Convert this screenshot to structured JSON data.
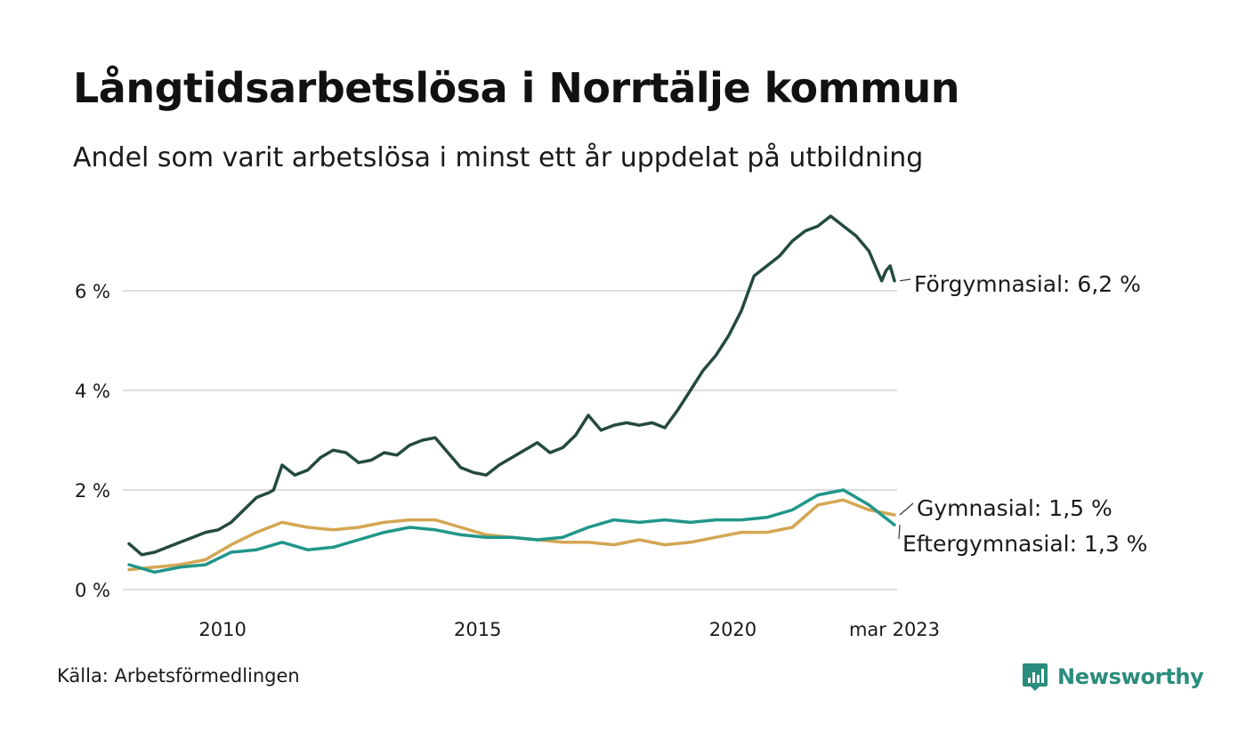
{
  "header": {
    "title": "Långtidsarbetslösa i Norrtälje kommun",
    "subtitle": "Andel som varit arbetslösa i minst ett år uppdelat på utbildning"
  },
  "footer": {
    "source": "Källa: Arbetsförmedlingen",
    "brand": "Newsworthy"
  },
  "colors": {
    "forgymnasial": "#244a41",
    "gymnasial": "#d4a653",
    "eftergymnasial": "#21968a",
    "grid": "#dddddd",
    "brand": "#2a8c7c"
  },
  "chart_data": {
    "type": "line",
    "title": "Långtidsarbetslösa i Norrtälje kommun",
    "subtitle": "Andel som varit arbetslösa i minst ett år uppdelat på utbildning",
    "xlabel": "",
    "ylabel": "",
    "x_start": "2008-03",
    "x_end": "2023-03",
    "xlim": [
      "2008-03",
      "2023-03"
    ],
    "ylim": [
      0,
      7.6
    ],
    "y_ticks": [
      0,
      2,
      4,
      6
    ],
    "y_tick_labels": [
      "0 %",
      "2 %",
      "4 %",
      "6 %"
    ],
    "x_ticks": [
      "2010-01",
      "2015-01",
      "2020-01",
      "2023-03"
    ],
    "x_tick_labels": [
      "2010",
      "2015",
      "2020",
      "mar 2023"
    ],
    "grid": true,
    "legend": "direct labels at line ends",
    "series": [
      {
        "name": "Förgymnasial",
        "label": "Förgymnasial: 6,2 %",
        "color": "#244a41",
        "points": [
          [
            "2008-03",
            0.92
          ],
          [
            "2008-06",
            0.7
          ],
          [
            "2008-09",
            0.75
          ],
          [
            "2008-12",
            0.85
          ],
          [
            "2009-03",
            0.95
          ],
          [
            "2009-06",
            1.05
          ],
          [
            "2009-09",
            1.15
          ],
          [
            "2009-12",
            1.2
          ],
          [
            "2010-03",
            1.35
          ],
          [
            "2010-06",
            1.6
          ],
          [
            "2010-09",
            1.85
          ],
          [
            "2010-12",
            1.95
          ],
          [
            "2011-01",
            2.0
          ],
          [
            "2011-03",
            2.5
          ],
          [
            "2011-06",
            2.3
          ],
          [
            "2011-09",
            2.4
          ],
          [
            "2011-12",
            2.65
          ],
          [
            "2012-03",
            2.8
          ],
          [
            "2012-06",
            2.75
          ],
          [
            "2012-09",
            2.55
          ],
          [
            "2012-12",
            2.6
          ],
          [
            "2013-03",
            2.75
          ],
          [
            "2013-06",
            2.7
          ],
          [
            "2013-09",
            2.9
          ],
          [
            "2013-12",
            3.0
          ],
          [
            "2014-03",
            3.05
          ],
          [
            "2014-06",
            2.75
          ],
          [
            "2014-09",
            2.45
          ],
          [
            "2014-12",
            2.35
          ],
          [
            "2015-03",
            2.3
          ],
          [
            "2015-06",
            2.5
          ],
          [
            "2015-09",
            2.65
          ],
          [
            "2015-12",
            2.8
          ],
          [
            "2016-03",
            2.95
          ],
          [
            "2016-06",
            2.75
          ],
          [
            "2016-09",
            2.85
          ],
          [
            "2016-12",
            3.1
          ],
          [
            "2017-03",
            3.5
          ],
          [
            "2017-06",
            3.2
          ],
          [
            "2017-09",
            3.3
          ],
          [
            "2017-12",
            3.35
          ],
          [
            "2018-03",
            3.3
          ],
          [
            "2018-06",
            3.35
          ],
          [
            "2018-09",
            3.25
          ],
          [
            "2018-12",
            3.6
          ],
          [
            "2019-03",
            4.0
          ],
          [
            "2019-06",
            4.4
          ],
          [
            "2019-09",
            4.7
          ],
          [
            "2019-12",
            5.1
          ],
          [
            "2020-03",
            5.6
          ],
          [
            "2020-06",
            6.3
          ],
          [
            "2020-09",
            6.5
          ],
          [
            "2020-12",
            6.7
          ],
          [
            "2021-03",
            7.0
          ],
          [
            "2021-06",
            7.2
          ],
          [
            "2021-09",
            7.3
          ],
          [
            "2021-12",
            7.5
          ],
          [
            "2022-03",
            7.3
          ],
          [
            "2022-06",
            7.1
          ],
          [
            "2022-09",
            6.8
          ],
          [
            "2022-12",
            6.2
          ],
          [
            "2023-01",
            6.4
          ],
          [
            "2023-02",
            6.5
          ],
          [
            "2023-03",
            6.2
          ]
        ]
      },
      {
        "name": "Gymnasial",
        "label": "Gymnasial: 1,5 %",
        "color": "#d4a653",
        "points": [
          [
            "2008-03",
            0.4
          ],
          [
            "2008-09",
            0.45
          ],
          [
            "2009-03",
            0.5
          ],
          [
            "2009-09",
            0.6
          ],
          [
            "2010-03",
            0.9
          ],
          [
            "2010-09",
            1.15
          ],
          [
            "2011-03",
            1.35
          ],
          [
            "2011-09",
            1.25
          ],
          [
            "2012-03",
            1.2
          ],
          [
            "2012-09",
            1.25
          ],
          [
            "2013-03",
            1.35
          ],
          [
            "2013-09",
            1.4
          ],
          [
            "2014-03",
            1.4
          ],
          [
            "2014-09",
            1.25
          ],
          [
            "2015-03",
            1.1
          ],
          [
            "2015-09",
            1.05
          ],
          [
            "2016-03",
            1.0
          ],
          [
            "2016-09",
            0.95
          ],
          [
            "2017-03",
            0.95
          ],
          [
            "2017-09",
            0.9
          ],
          [
            "2018-03",
            1.0
          ],
          [
            "2018-09",
            0.9
          ],
          [
            "2019-03",
            0.95
          ],
          [
            "2019-09",
            1.05
          ],
          [
            "2020-03",
            1.15
          ],
          [
            "2020-09",
            1.15
          ],
          [
            "2021-03",
            1.25
          ],
          [
            "2021-09",
            1.7
          ],
          [
            "2022-03",
            1.8
          ],
          [
            "2022-09",
            1.6
          ],
          [
            "2023-03",
            1.5
          ]
        ]
      },
      {
        "name": "Eftergymnasial",
        "label": "Eftergymnasial: 1,3 %",
        "color": "#21968a",
        "points": [
          [
            "2008-03",
            0.5
          ],
          [
            "2008-09",
            0.35
          ],
          [
            "2009-03",
            0.45
          ],
          [
            "2009-09",
            0.5
          ],
          [
            "2010-03",
            0.75
          ],
          [
            "2010-09",
            0.8
          ],
          [
            "2011-03",
            0.95
          ],
          [
            "2011-09",
            0.8
          ],
          [
            "2012-03",
            0.85
          ],
          [
            "2012-09",
            1.0
          ],
          [
            "2013-03",
            1.15
          ],
          [
            "2013-09",
            1.25
          ],
          [
            "2014-03",
            1.2
          ],
          [
            "2014-09",
            1.1
          ],
          [
            "2015-03",
            1.05
          ],
          [
            "2015-09",
            1.05
          ],
          [
            "2016-03",
            1.0
          ],
          [
            "2016-09",
            1.05
          ],
          [
            "2017-03",
            1.25
          ],
          [
            "2017-09",
            1.4
          ],
          [
            "2018-03",
            1.35
          ],
          [
            "2018-09",
            1.4
          ],
          [
            "2019-03",
            1.35
          ],
          [
            "2019-09",
            1.4
          ],
          [
            "2020-03",
            1.4
          ],
          [
            "2020-09",
            1.45
          ],
          [
            "2021-03",
            1.6
          ],
          [
            "2021-09",
            1.9
          ],
          [
            "2022-03",
            2.0
          ],
          [
            "2022-09",
            1.7
          ],
          [
            "2023-03",
            1.3
          ]
        ]
      }
    ]
  }
}
